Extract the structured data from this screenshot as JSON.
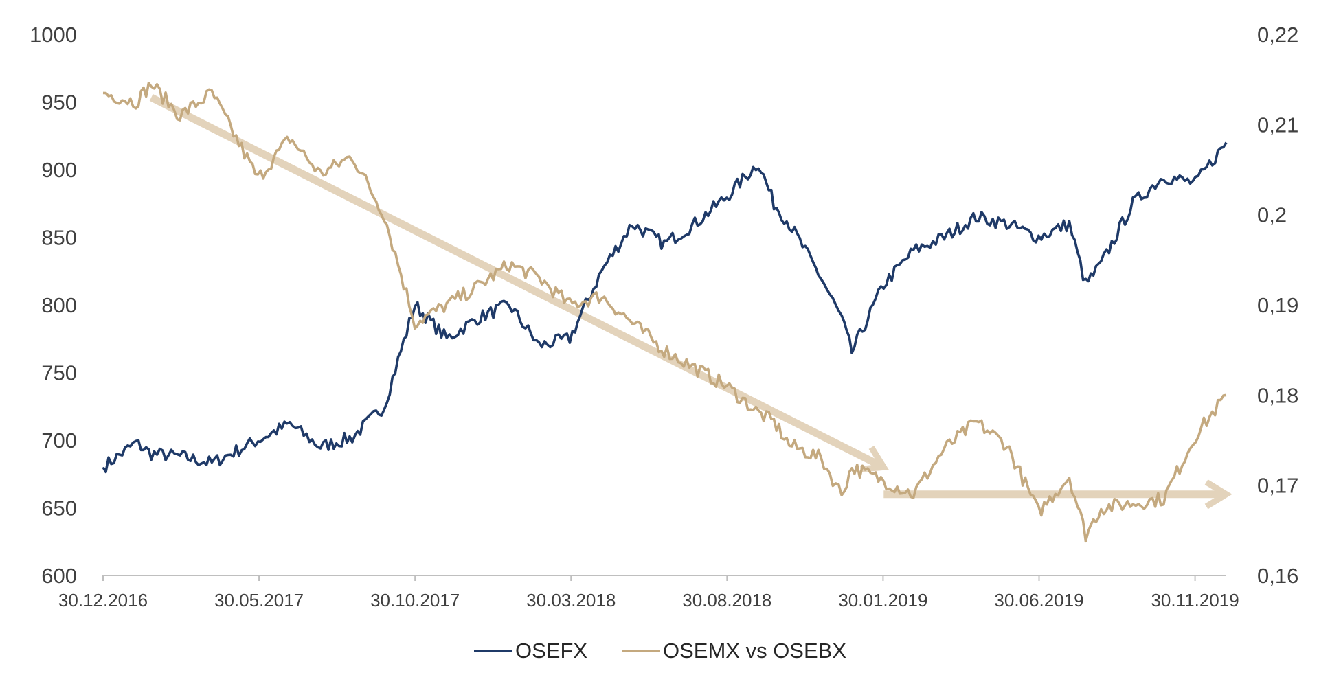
{
  "chart_data": {
    "type": "line",
    "colors": {
      "OSEFX": "#1f3a68",
      "OSEMX vs OSEBX": "#c4a97f",
      "trend_arrows": "#e3d3bb",
      "axis": "#bfbfbf",
      "text": "#404040"
    },
    "x_tick_labels": [
      "30.12.2016",
      "30.05.2017",
      "30.10.2017",
      "30.03.2018",
      "30.08.2018",
      "30.01.2019",
      "30.06.2019",
      "30.11.2019"
    ],
    "x": [
      "2016-12-30",
      "2017-01-31",
      "2017-02-15",
      "2017-03-15",
      "2017-04-15",
      "2017-05-30",
      "2017-06-30",
      "2017-07-30",
      "2017-08-30",
      "2017-09-30",
      "2017-10-30",
      "2017-11-30",
      "2017-12-30",
      "2018-01-30",
      "2018-02-28",
      "2018-03-30",
      "2018-04-30",
      "2018-05-30",
      "2018-06-30",
      "2018-07-30",
      "2018-08-30",
      "2018-09-30",
      "2018-10-15",
      "2018-10-30",
      "2018-11-30",
      "2018-12-20",
      "2018-12-30",
      "2019-01-30",
      "2019-02-28",
      "2019-03-30",
      "2019-04-30",
      "2019-05-30",
      "2019-06-30",
      "2019-07-30",
      "2019-08-15",
      "2019-08-30",
      "2019-09-30",
      "2019-10-30",
      "2019-11-30",
      "2019-12-30"
    ],
    "y_left": {
      "ticks": [
        "1000",
        "950",
        "900",
        "850",
        "800",
        "750",
        "700",
        "650",
        "600"
      ],
      "range": [
        600,
        1000
      ]
    },
    "y_right": {
      "ticks": [
        "0,22",
        "0,21",
        "0,2",
        "0,19",
        "0,18",
        "0,17",
        "0,16"
      ],
      "range": [
        0.16,
        0.22
      ]
    },
    "series": [
      {
        "name": "OSEFX",
        "axis": "left",
        "values": [
          680,
          698,
          690,
          688,
          683,
          700,
          712,
          695,
          702,
          725,
          800,
          775,
          790,
          800,
          770,
          775,
          825,
          860,
          845,
          860,
          880,
          905,
          875,
          860,
          820,
          790,
          765,
          815,
          840,
          850,
          865,
          860,
          850,
          860,
          815,
          830,
          875,
          895,
          890,
          920
        ]
      },
      {
        "name": "OSEMX vs OSEBX",
        "axis": "right",
        "values": [
          0.2135,
          0.2125,
          0.2145,
          0.211,
          0.2135,
          0.204,
          0.2085,
          0.2045,
          0.2065,
          0.2,
          0.188,
          0.19,
          0.192,
          0.1945,
          0.193,
          0.19,
          0.191,
          0.188,
          0.185,
          0.183,
          0.181,
          0.178,
          0.177,
          0.1745,
          0.173,
          0.169,
          0.172,
          0.1705,
          0.169,
          0.174,
          0.177,
          0.1745,
          0.167,
          0.171,
          0.1645,
          0.1675,
          0.168,
          0.1685,
          0.1755,
          0.18
        ]
      }
    ],
    "trend_arrows": [
      {
        "from": [
          "2017-02-15",
          0.213
        ],
        "to": [
          "2019-01-30",
          0.172
        ],
        "axis": "right"
      },
      {
        "from": [
          "2019-01-30",
          0.169
        ],
        "to": [
          "2019-12-30",
          0.169
        ],
        "axis": "right"
      }
    ],
    "legend": {
      "position": "bottom-center",
      "entries": [
        "OSEFX",
        "OSEMX vs OSEBX"
      ]
    },
    "grid": false
  }
}
